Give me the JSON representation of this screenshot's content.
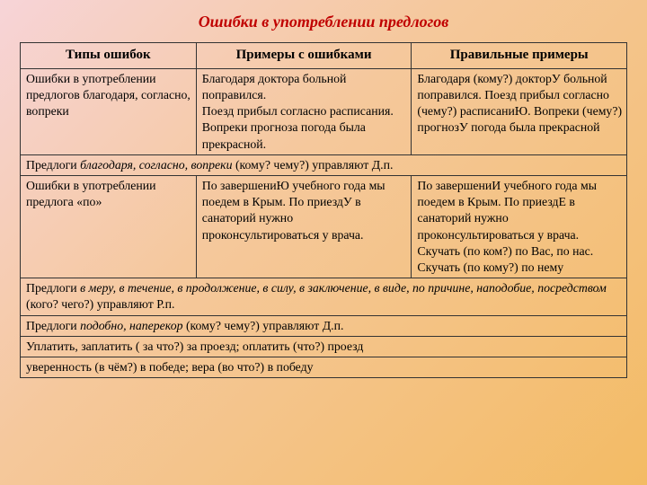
{
  "title": "Ошибки в употреблении предлогов",
  "headers": {
    "col1": "Типы ошибок",
    "col2": "Примеры с ошибками",
    "col3": "Правильные примеры"
  },
  "row1": {
    "type": "Ошибки в употреблении предлогов  благодаря, согласно, вопреки",
    "wrong": "Благодаря доктора больной поправился.\nПоезд прибыл согласно расписания.\nВопреки прогноза погода была прекрасной.",
    "right": "Благодаря (кому?) докторУ больной поправился. Поезд прибыл согласно (чему?) расписаниЮ. Вопреки (чему?) прогнозУ погода была прекрасной"
  },
  "note1_a": "Предлоги ",
  "note1_b": "благодаря, согласно, вопреки ",
  "note1_c": " (кому? чему?) управляют Д.п.",
  "row2": {
    "type": "Ошибки в употреблении предлога «по»",
    "wrong": "По завершениЮ учебного года мы поедем в Крым. По приездУ в санаторий нужно проконсультироваться у врача.",
    "right": "По завершениИ учебного года мы поедем в Крым. По приездЕ в санаторий нужно проконсультироваться у врача. Скучать (по ком?) по Вас, по нас. Скучать (по кому?) по нему"
  },
  "note2_a": "Предлоги ",
  "note2_b": "в меру, в течение, в продолжение, в силу, в заключение, в виде, по причине, наподобие, посредством",
  "note2_c": " (кого? чего?) управляют Р.п.",
  "note3_a": "Предлоги ",
  "note3_b": "подобно, наперекор",
  "note3_c": " (кому? чему?) управляют Д.п.",
  "note4": "Уплатить, заплатить ( за что?) за проезд; оплатить (что?) проезд",
  "note5": "уверенность (в чём?) в победе; вера (во что?) в победу"
}
